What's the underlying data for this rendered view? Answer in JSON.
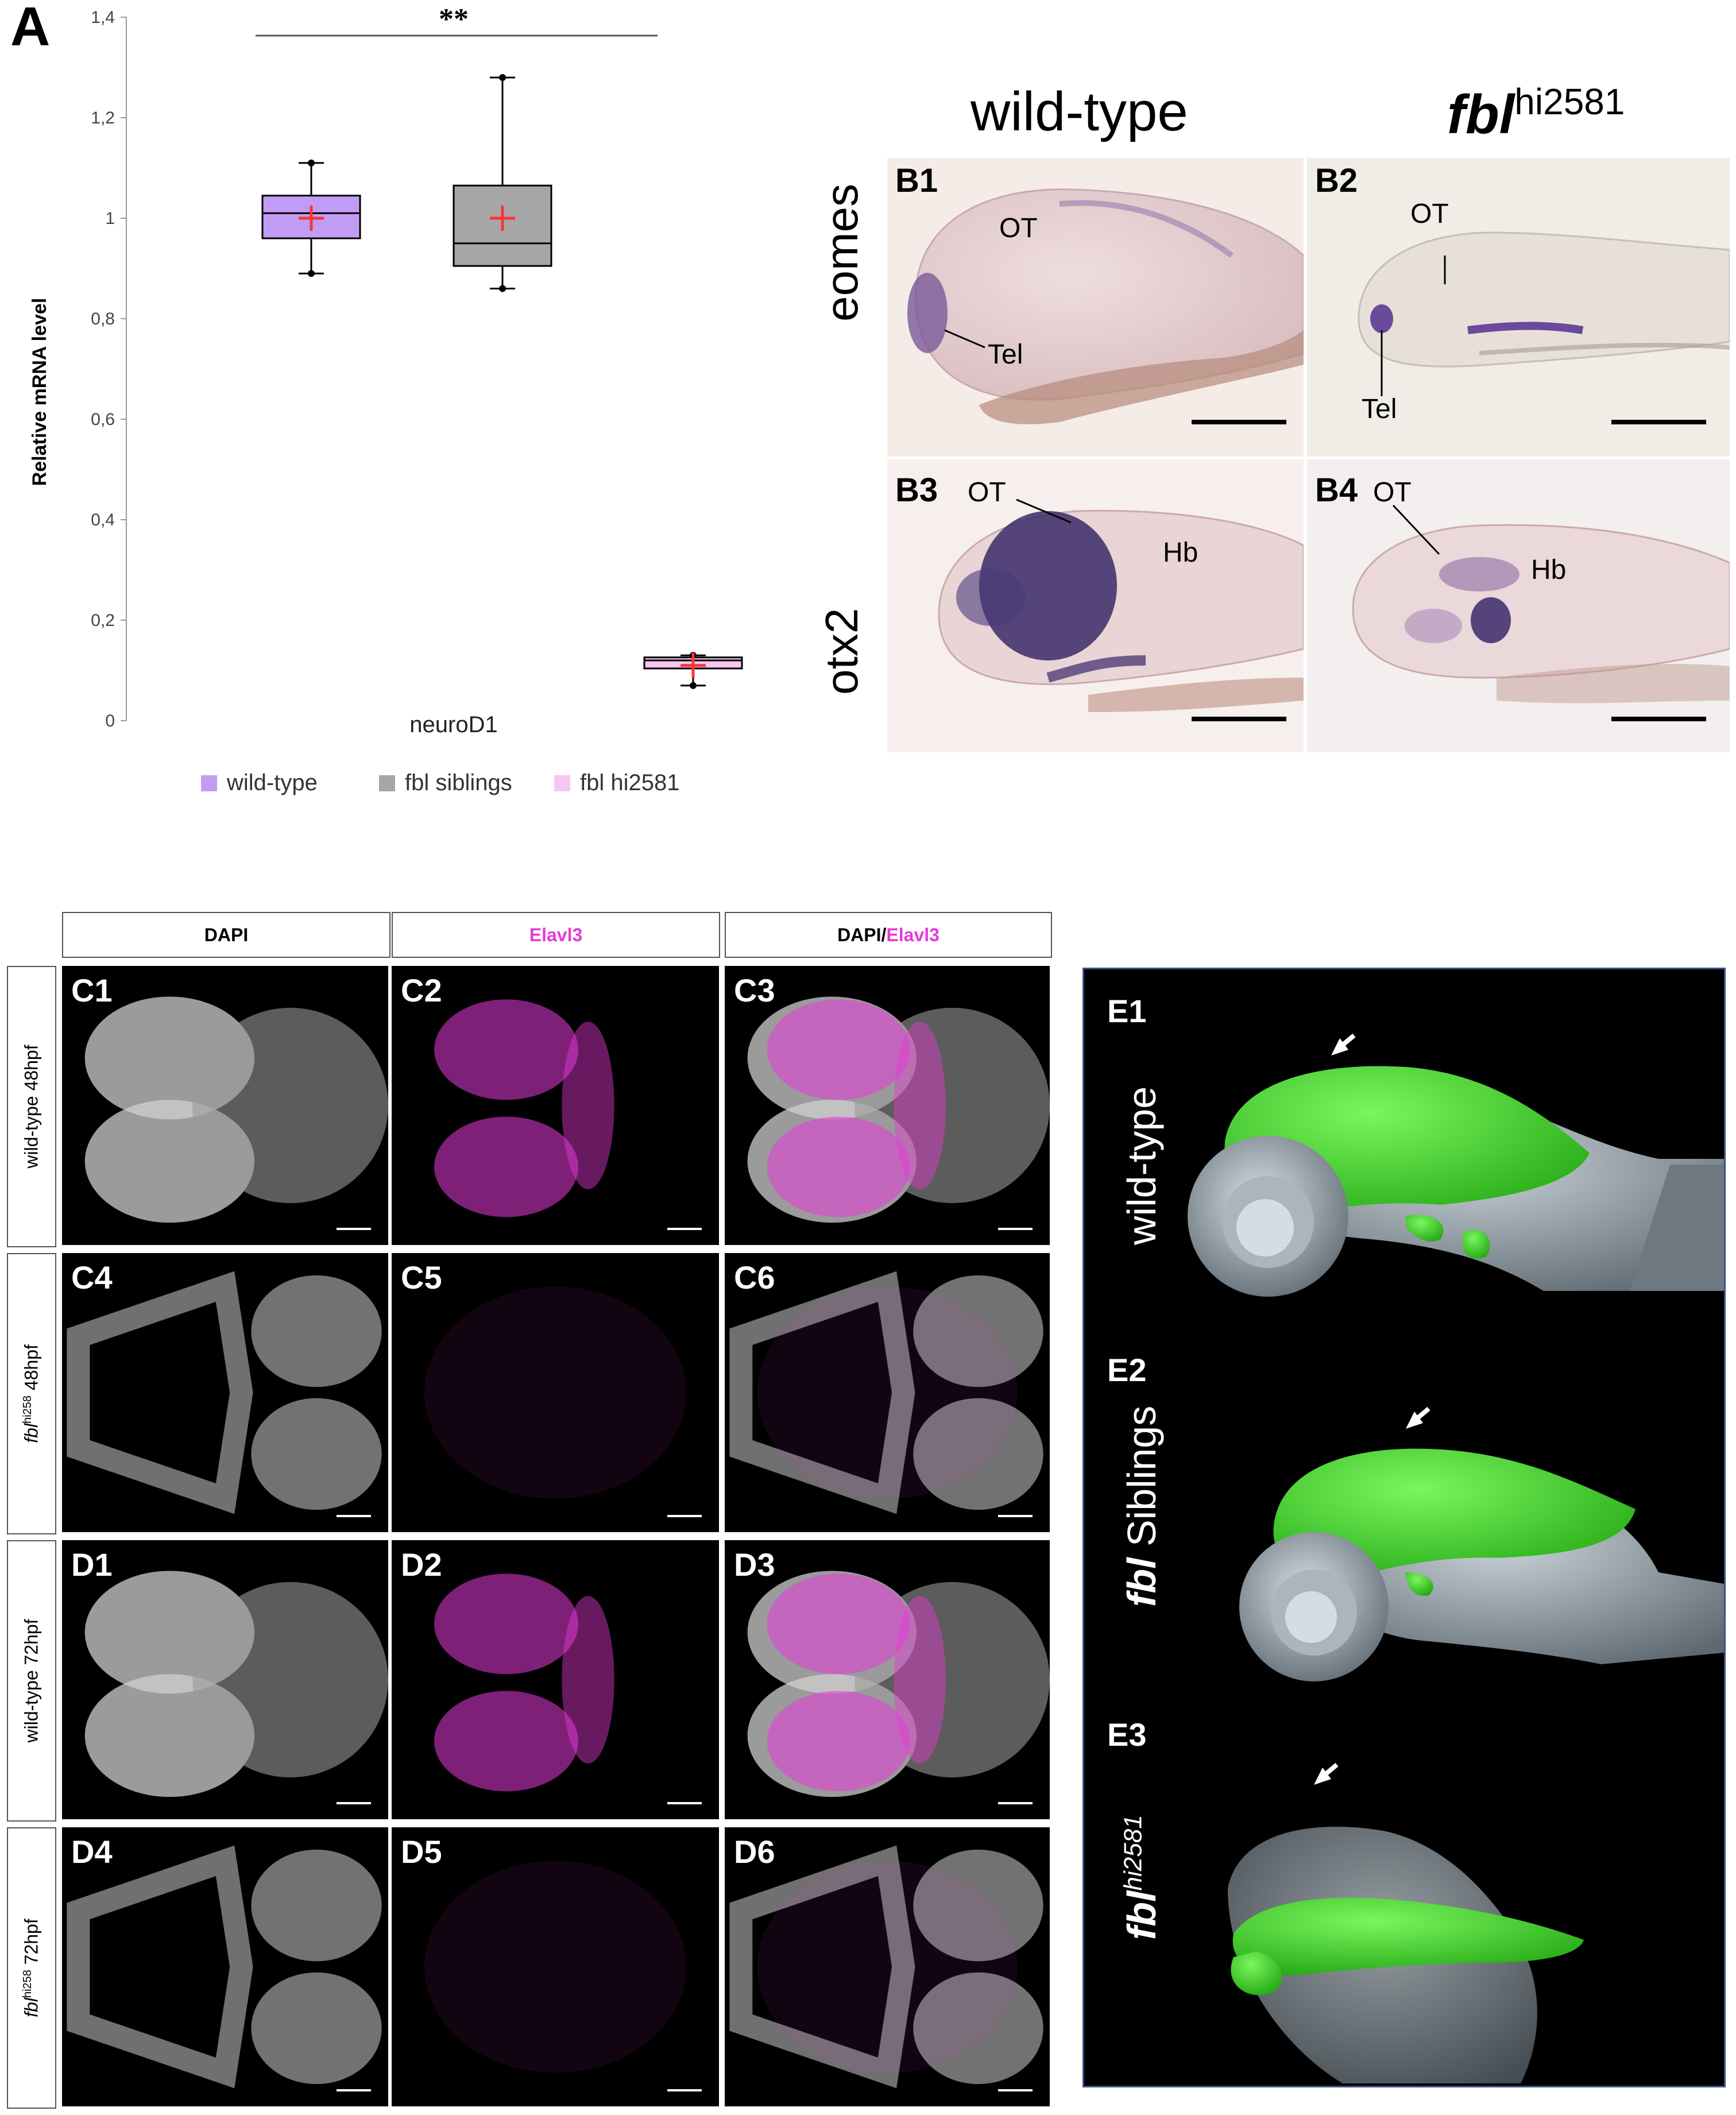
{
  "panel_a": {
    "letter": "A",
    "chart_data": {
      "type": "box",
      "ylabel": "Relative mRNA level",
      "xlabel": "neuroD1",
      "ylim": [
        0,
        1.4
      ],
      "yticks": [
        "0",
        "0,2",
        "0,4",
        "0,6",
        "0,8",
        "1",
        "1,2",
        "1,4"
      ],
      "yvalues": [
        0,
        0.2,
        0.4,
        0.6,
        0.8,
        1.0,
        1.2,
        1.4
      ],
      "significance": "**",
      "series": [
        {
          "name": "wild-type",
          "min": 0.89,
          "q1": 0.96,
          "median": 1.01,
          "q3": 1.045,
          "max": 1.11,
          "mean": 1.0,
          "color": "#c19cf5"
        },
        {
          "name": "fbl siblings",
          "min": 0.86,
          "q1": 0.905,
          "median": 0.95,
          "q3": 1.065,
          "max": 1.28,
          "mean": 1.0,
          "color": "#a6a6a6"
        },
        {
          "name": "fbl hi2581",
          "min": 0.07,
          "q1": 0.104,
          "median": 0.12,
          "q3": 0.126,
          "max": 0.13,
          "mean": 0.11,
          "color": "#f7c6f2"
        }
      ],
      "legend": [
        "wild-type",
        "fbl siblings",
        "fbl hi2581"
      ],
      "legend_position": "bottom"
    }
  },
  "panel_b": {
    "col_wt": "wild-type",
    "col_fbl": "fbl",
    "col_fbl_sup": "hi2581",
    "row1_label": "eomes",
    "row2_label": "otx2",
    "b1": "B1",
    "b2": "B2",
    "b3": "B3",
    "b4": "B4",
    "ot": "OT",
    "tel": "Tel",
    "hb": "Hb"
  },
  "panel_cd": {
    "header_dapi": "DAPI",
    "header_elavl3": "Elavl3",
    "header_merge_a": "DAPI/",
    "header_merge_b": "Elavl3",
    "row1": "wild-type 48hpf",
    "row2_italic": "fbl",
    "row2_sup": "hi258",
    "row2_rest": " 48hpf",
    "row3": "wild-type 72hpf",
    "row4_italic": "fbl",
    "row4_sup": "hi258",
    "row4_rest": " 72hpf",
    "labels": [
      "C1",
      "C2",
      "C3",
      "C4",
      "C5",
      "C6",
      "D1",
      "D2",
      "D3",
      "D4",
      "D5",
      "D6"
    ]
  },
  "panel_e": {
    "e1": "E1",
    "e2": "E2",
    "e3": "E3",
    "e1_label": "wild-type",
    "e2_italic": "fbl",
    "e2_rest": " Siblings",
    "e3_italic": "fbl",
    "e3_sup": "hi2581"
  },
  "colors": {
    "magenta": "#e63ad8",
    "green": "#2bd31c",
    "ish_purple": "#5a3a8a"
  }
}
